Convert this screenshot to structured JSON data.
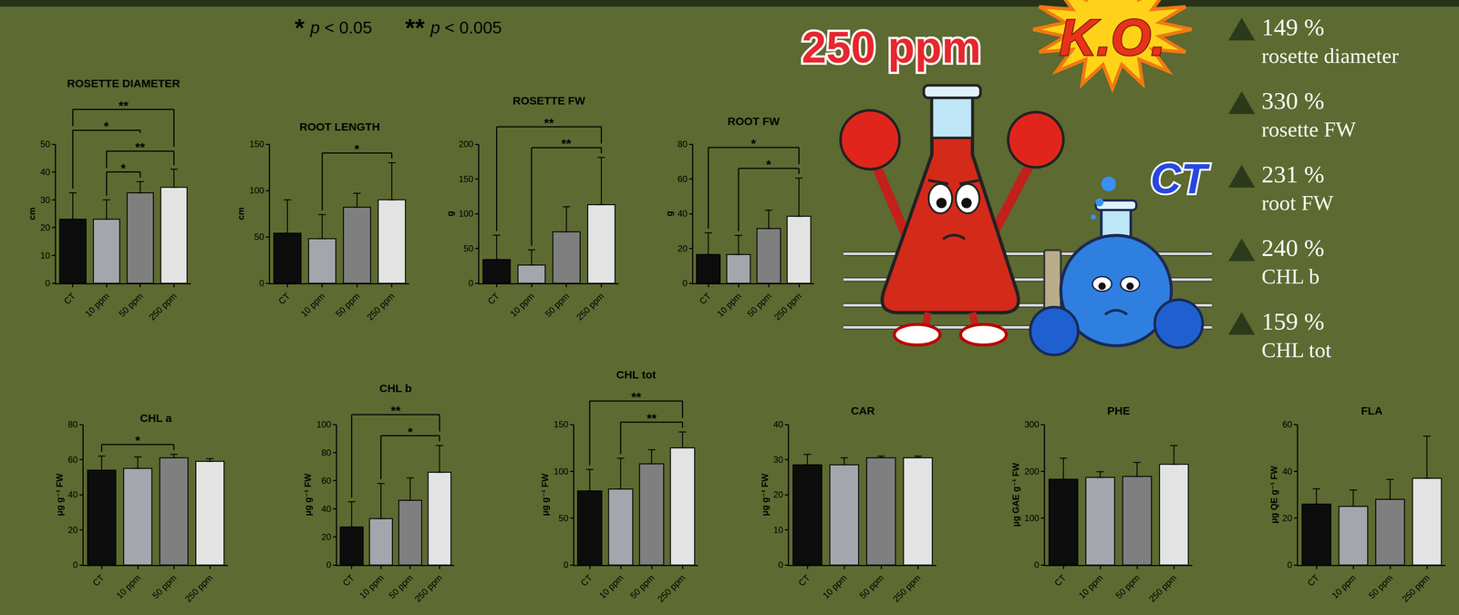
{
  "significance_key": [
    {
      "symbol": "*",
      "text": "p < 0.05"
    },
    {
      "symbol": "**",
      "text": "p < 0.005"
    }
  ],
  "cartoon": {
    "dose_label": "250 ppm",
    "ko_label": "K.O.",
    "control_label": "CT"
  },
  "highlights": [
    {
      "label": "149 %",
      "text": "rosette diameter"
    },
    {
      "label": "330 %",
      "text": "rosette FW"
    },
    {
      "label": "231 %",
      "text": "root FW"
    },
    {
      "label": "240 %",
      "text": "CHL b"
    },
    {
      "label": "159 %",
      "text": "CHL tot"
    }
  ],
  "chart_data": [
    {
      "type": "bar",
      "title": "ROSETTE DIAMETER",
      "y_label": "cm",
      "categories": [
        "CT",
        "10 ppm",
        "50 ppm",
        "250 ppm"
      ],
      "values": [
        23,
        23,
        32.5,
        34.5
      ],
      "errors": [
        9.5,
        7,
        4,
        6.5
      ],
      "colors": [
        "#0d0d0d",
        "#a5a5ad",
        "#7f7f7f",
        "#e3e3e3"
      ],
      "ylim": [
        0,
        50
      ],
      "yticks": [
        0,
        10,
        20,
        30,
        40,
        50
      ],
      "brackets": [
        {
          "from": "CT",
          "to": "250 ppm",
          "label": "**"
        },
        {
          "from": "10 ppm",
          "to": "250 ppm",
          "label": "**"
        },
        {
          "from": "CT",
          "to": "50 ppm",
          "label": "*"
        },
        {
          "from": "10 ppm",
          "to": "50 ppm",
          "label": "*"
        }
      ]
    },
    {
      "type": "bar",
      "title": "ROOT LENGTH",
      "y_label": "cm",
      "categories": [
        "CT",
        "10 ppm",
        "50 ppm",
        "250 ppm"
      ],
      "values": [
        54,
        48,
        82,
        90
      ],
      "errors": [
        36,
        26,
        15,
        40
      ],
      "colors": [
        "#0d0d0d",
        "#a5a5ad",
        "#7f7f7f",
        "#e3e3e3"
      ],
      "ylim": [
        0,
        150
      ],
      "yticks": [
        0,
        50,
        100,
        150
      ],
      "brackets": [
        {
          "from": "10 ppm",
          "to": "250 ppm",
          "label": "*"
        }
      ]
    },
    {
      "type": "bar",
      "title": "ROSETTE FW",
      "y_label": "g",
      "categories": [
        "CT",
        "10 ppm",
        "50 ppm",
        "250 ppm"
      ],
      "values": [
        34,
        26,
        74,
        113
      ],
      "errors": [
        35,
        22,
        36,
        68
      ],
      "colors": [
        "#0d0d0d",
        "#a5a5ad",
        "#7f7f7f",
        "#e3e3e3"
      ],
      "ylim": [
        0,
        200
      ],
      "yticks": [
        0,
        50,
        100,
        150,
        200
      ],
      "brackets": [
        {
          "from": "CT",
          "to": "250 ppm",
          "label": "**"
        },
        {
          "from": "10 ppm",
          "to": "250 ppm",
          "label": "**"
        }
      ]
    },
    {
      "type": "bar",
      "title": "ROOT FW",
      "y_label": "g",
      "categories": [
        "CT",
        "10 ppm",
        "50 ppm",
        "250 ppm"
      ],
      "values": [
        16.5,
        16.5,
        31.5,
        38.5
      ],
      "errors": [
        12.5,
        11,
        10.5,
        22
      ],
      "colors": [
        "#0d0d0d",
        "#a5a5ad",
        "#7f7f7f",
        "#e3e3e3"
      ],
      "ylim": [
        0,
        80
      ],
      "yticks": [
        0,
        20,
        40,
        60,
        80
      ],
      "brackets": [
        {
          "from": "CT",
          "to": "250 ppm",
          "label": "*"
        },
        {
          "from": "10 ppm",
          "to": "250 ppm",
          "label": "*"
        }
      ]
    },
    {
      "type": "bar",
      "title": "CHL a",
      "y_label": "μg g⁻¹ FW",
      "categories": [
        "CT",
        "10 ppm",
        "50 ppm",
        "250 ppm"
      ],
      "values": [
        54,
        55,
        61,
        59
      ],
      "errors": [
        8,
        6.5,
        2,
        1.5
      ],
      "colors": [
        "#0d0d0d",
        "#a5a5ad",
        "#7f7f7f",
        "#e3e3e3"
      ],
      "ylim": [
        0,
        80
      ],
      "yticks": [
        0,
        20,
        40,
        60,
        80
      ],
      "brackets": [
        {
          "from": "CT",
          "to": "50 ppm",
          "label": "*"
        }
      ]
    },
    {
      "type": "bar",
      "title": "CHL b",
      "y_label": "μg g⁻¹ FW",
      "categories": [
        "CT",
        "10 ppm",
        "50 ppm",
        "250 ppm"
      ],
      "values": [
        27,
        33,
        46,
        66
      ],
      "errors": [
        18,
        25,
        16,
        19
      ],
      "colors": [
        "#0d0d0d",
        "#a5a5ad",
        "#7f7f7f",
        "#e3e3e3"
      ],
      "ylim": [
        0,
        100
      ],
      "yticks": [
        0,
        20,
        40,
        60,
        80,
        100
      ],
      "brackets": [
        {
          "from": "CT",
          "to": "250 ppm",
          "label": "**"
        },
        {
          "from": "10 ppm",
          "to": "250 ppm",
          "label": "*"
        }
      ]
    },
    {
      "type": "bar",
      "title": "CHL tot",
      "y_label": "μg g⁻¹ FW",
      "categories": [
        "CT",
        "10 ppm",
        "50 ppm",
        "250 ppm"
      ],
      "values": [
        79,
        81,
        108,
        125
      ],
      "errors": [
        23,
        33,
        15,
        17
      ],
      "colors": [
        "#0d0d0d",
        "#a5a5ad",
        "#7f7f7f",
        "#e3e3e3"
      ],
      "ylim": [
        0,
        150
      ],
      "yticks": [
        0,
        50,
        100,
        150
      ],
      "brackets": [
        {
          "from": "CT",
          "to": "250 ppm",
          "label": "**"
        },
        {
          "from": "10 ppm",
          "to": "250 ppm",
          "label": "**"
        }
      ]
    },
    {
      "type": "bar",
      "title": "CAR",
      "y_label": "μg g⁻¹ FW",
      "categories": [
        "CT",
        "10 ppm",
        "50 ppm",
        "250 ppm"
      ],
      "values": [
        28.5,
        28.5,
        30.5,
        30.5
      ],
      "errors": [
        3,
        2,
        0.5,
        0.5
      ],
      "colors": [
        "#0d0d0d",
        "#a5a5ad",
        "#7f7f7f",
        "#e3e3e3"
      ],
      "ylim": [
        0,
        40
      ],
      "yticks": [
        0,
        10,
        20,
        30,
        40
      ],
      "brackets": []
    },
    {
      "type": "bar",
      "title": "PHE",
      "y_label": "μg GAE g⁻¹ FW",
      "categories": [
        "CT",
        "10 ppm",
        "50 ppm",
        "250 ppm"
      ],
      "values": [
        183,
        187,
        189,
        215
      ],
      "errors": [
        45,
        12,
        30,
        40
      ],
      "colors": [
        "#0d0d0d",
        "#a5a5ad",
        "#7f7f7f",
        "#e3e3e3"
      ],
      "ylim": [
        0,
        300
      ],
      "yticks": [
        0,
        100,
        200,
        300
      ],
      "brackets": []
    },
    {
      "type": "bar",
      "title": "FLA",
      "y_label": "μg QE g⁻¹ FW",
      "categories": [
        "CT",
        "10 ppm",
        "50 ppm",
        "250 ppm"
      ],
      "values": [
        26,
        25,
        28,
        37
      ],
      "errors": [
        6.5,
        7,
        8.5,
        18
      ],
      "colors": [
        "#0d0d0d",
        "#a5a5ad",
        "#7f7f7f",
        "#e3e3e3"
      ],
      "ylim": [
        0,
        60
      ],
      "yticks": [
        0,
        20,
        40,
        60
      ],
      "brackets": []
    }
  ]
}
